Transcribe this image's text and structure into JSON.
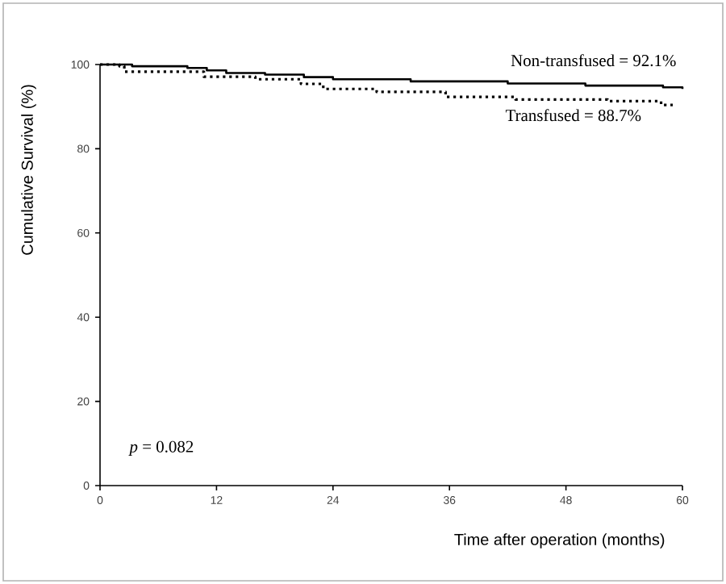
{
  "chart_data": {
    "type": "step",
    "xlabel": "Time after operation (months)",
    "ylabel": "Cumulative Survival (%)",
    "xlim": [
      0,
      60
    ],
    "ylim": [
      0,
      100
    ],
    "xticks": [
      0,
      12,
      24,
      36,
      48,
      60
    ],
    "yticks": [
      0,
      20,
      40,
      60,
      80,
      100
    ],
    "marker": "none",
    "series": [
      {
        "color": "#000000",
        "line_style": "solid",
        "x": [
          0,
          3.3,
          9,
          11,
          13,
          17,
          21,
          24,
          32,
          42,
          50,
          58,
          60
        ],
        "values": [
          100,
          99.6,
          99.2,
          98.6,
          98.0,
          97.6,
          97.0,
          96.5,
          96.0,
          95.5,
          95.0,
          94.6,
          94.2
        ]
      },
      {
        "color": "#000000",
        "line_style": "dotted",
        "x": [
          0,
          2,
          2.5,
          10.7,
          16,
          20.7,
          23,
          28.5,
          35.6,
          42.8,
          52.3,
          57.8,
          59
        ],
        "values": [
          100,
          99.6,
          98.3,
          97.1,
          96.5,
          95.4,
          94.2,
          93.5,
          92.3,
          91.7,
          91.3,
          90.4,
          90.4
        ]
      }
    ],
    "annotations": [
      "Non-transfused = 92.1%",
      "Transfused = 88.7%",
      "*p* = 0.082"
    ]
  }
}
